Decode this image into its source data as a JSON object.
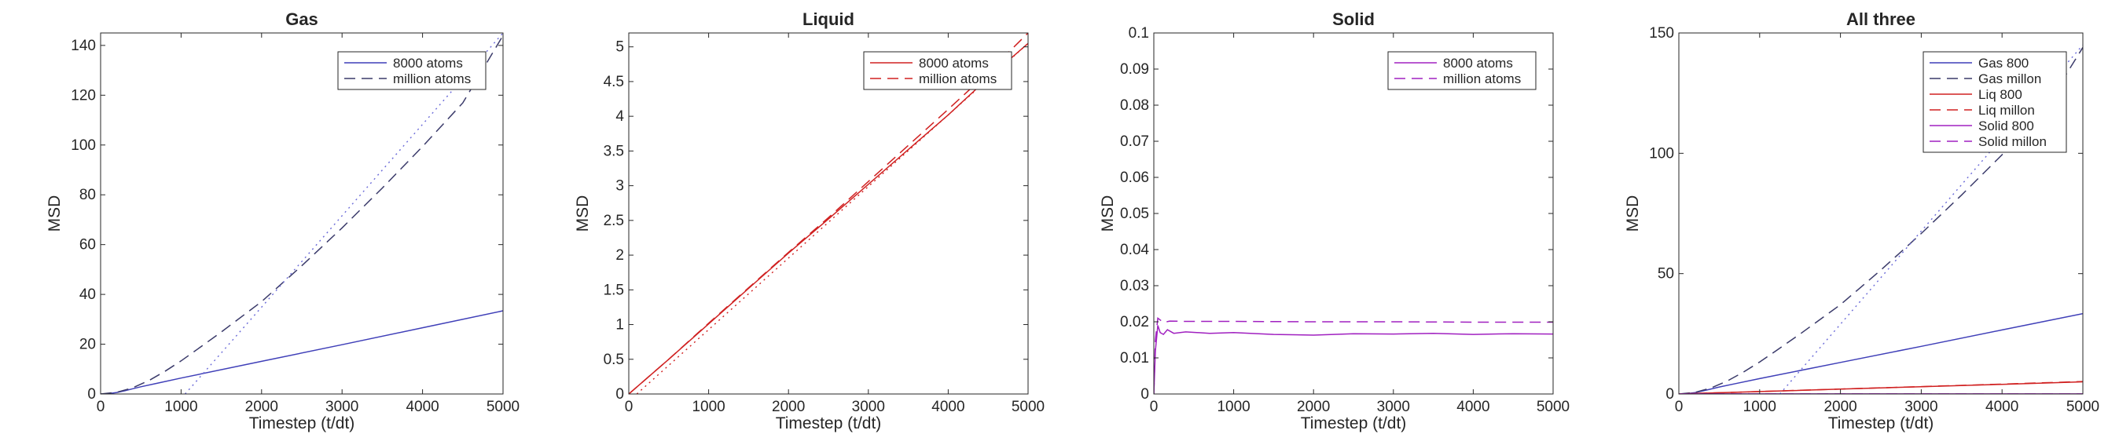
{
  "chart_data": [
    {
      "type": "line",
      "title": "Gas",
      "xlabel": "Timestep (t/dt)",
      "ylabel": "MSD",
      "xlim": [
        0,
        5000
      ],
      "ylim": [
        0,
        145
      ],
      "xticks": [
        0,
        1000,
        2000,
        3000,
        4000,
        5000
      ],
      "yticks": [
        0,
        20,
        40,
        60,
        80,
        100,
        120,
        140
      ],
      "legend_position": "top-right",
      "grid": false,
      "series": [
        {
          "name": "8000 atoms",
          "color": "#3f3fb8",
          "style": "solid",
          "x": [
            0,
            100,
            200,
            300,
            400,
            500,
            700,
            1000,
            2000,
            3000,
            4000,
            5000
          ],
          "y": [
            0,
            0.15,
            0.6,
            1.3,
            2.1,
            2.9,
            4.3,
            6.4,
            13.1,
            19.8,
            26.6,
            33.4
          ]
        },
        {
          "name": "million atoms",
          "color": "#3a3a6a",
          "style": "dashed",
          "x": [
            0,
            200,
            400,
            600,
            800,
            1000,
            1200,
            1500,
            2000,
            2500,
            3000,
            3500,
            4000,
            4500,
            5000
          ],
          "y": [
            0,
            0.7,
            2.5,
            5.4,
            9.1,
            13.3,
            17.9,
            24.9,
            37.1,
            51.5,
            66.7,
            82.7,
            99.4,
            116.9,
            144
          ]
        },
        {
          "name": "",
          "color": "#6a6ad8",
          "style": "dotted",
          "x": [
            1050,
            5000
          ],
          "y": [
            0,
            145
          ]
        }
      ]
    },
    {
      "type": "line",
      "title": "Liquid",
      "xlabel": "Timestep (t/dt)",
      "ylabel": "MSD",
      "xlim": [
        0,
        5000
      ],
      "ylim": [
        0,
        5.2
      ],
      "xticks": [
        0,
        1000,
        2000,
        3000,
        4000,
        5000
      ],
      "yticks": [
        0,
        0.5,
        1,
        1.5,
        2,
        2.5,
        3,
        3.5,
        4,
        4.5,
        5
      ],
      "legend_position": "top-right",
      "grid": false,
      "series": [
        {
          "name": "8000 atoms",
          "color": "#d02020",
          "style": "solid",
          "x": [
            0,
            500,
            1000,
            1500,
            2000,
            2500,
            3000,
            3500,
            4000,
            4500,
            5000
          ],
          "y": [
            0,
            0.5,
            1.01,
            1.52,
            2.03,
            2.52,
            3.02,
            3.52,
            4.02,
            4.55,
            5.05
          ]
        },
        {
          "name": "million atoms",
          "color": "#d02020",
          "style": "dashed",
          "x": [
            0,
            500,
            1000,
            1500,
            2000,
            2500,
            3000,
            3500,
            4000,
            4500,
            5000
          ],
          "y": [
            0,
            0.5,
            1.02,
            1.53,
            2.04,
            2.54,
            3.06,
            3.58,
            4.1,
            4.63,
            5.2
          ]
        },
        {
          "name": "",
          "color": "#d02020",
          "style": "dotted",
          "x": [
            100,
            5000
          ],
          "y": [
            0,
            5.05
          ]
        }
      ]
    },
    {
      "type": "line",
      "title": "Solid",
      "xlabel": "Timestep (t/dt)",
      "ylabel": "MSD",
      "xlim": [
        0,
        5000
      ],
      "ylim": [
        0,
        0.1
      ],
      "xticks": [
        0,
        1000,
        2000,
        3000,
        4000,
        5000
      ],
      "yticks": [
        0,
        0.01,
        0.02,
        0.03,
        0.04,
        0.05,
        0.06,
        0.07,
        0.08,
        0.09,
        0.1
      ],
      "legend_position": "top-right",
      "grid": false,
      "series": [
        {
          "name": "8000 atoms",
          "color": "#a020c0",
          "style": "solid",
          "x": [
            0,
            20,
            50,
            80,
            120,
            170,
            250,
            400,
            700,
            1000,
            1500,
            2000,
            2500,
            3000,
            3500,
            4000,
            4500,
            5000
          ],
          "y": [
            0,
            0.012,
            0.019,
            0.017,
            0.0165,
            0.0178,
            0.0168,
            0.0172,
            0.0168,
            0.017,
            0.0165,
            0.0163,
            0.0167,
            0.0166,
            0.0168,
            0.0165,
            0.0167,
            0.0166
          ]
        },
        {
          "name": "million atoms",
          "color": "#a020c0",
          "style": "dashed",
          "x": [
            0,
            20,
            50,
            80,
            120,
            200,
            400,
            1000,
            2000,
            3000,
            4000,
            5000
          ],
          "y": [
            0,
            0.015,
            0.021,
            0.0205,
            0.0198,
            0.0202,
            0.0201,
            0.0201,
            0.02,
            0.02,
            0.0199,
            0.0199
          ]
        }
      ]
    },
    {
      "type": "line",
      "title": "All three",
      "xlabel": "Timestep (t/dt)",
      "ylabel": "MSD",
      "xlim": [
        0,
        5000
      ],
      "ylim": [
        0,
        150
      ],
      "xticks": [
        0,
        1000,
        2000,
        3000,
        4000,
        5000
      ],
      "yticks": [
        0,
        50,
        100,
        150
      ],
      "legend_position": "top-right",
      "grid": false,
      "series": [
        {
          "name": "Gas 800",
          "color": "#3f3fb8",
          "style": "solid",
          "x": [
            0,
            100,
            200,
            300,
            400,
            500,
            700,
            1000,
            2000,
            3000,
            4000,
            5000
          ],
          "y": [
            0,
            0.15,
            0.6,
            1.3,
            2.1,
            2.9,
            4.3,
            6.4,
            13.1,
            19.8,
            26.6,
            33.4
          ]
        },
        {
          "name": "Gas millon",
          "color": "#3a3a6a",
          "style": "dashed",
          "x": [
            0,
            200,
            400,
            600,
            800,
            1000,
            1200,
            1500,
            2000,
            2500,
            3000,
            3500,
            4000,
            4500,
            5000
          ],
          "y": [
            0,
            0.7,
            2.5,
            5.4,
            9.1,
            13.3,
            17.9,
            24.9,
            37.1,
            51.5,
            66.7,
            82.7,
            99.4,
            116.9,
            144
          ]
        },
        {
          "name": "Liq 800",
          "color": "#d02020",
          "style": "solid",
          "x": [
            0,
            1000,
            2000,
            3000,
            4000,
            5000
          ],
          "y": [
            0,
            1.01,
            2.03,
            3.02,
            4.02,
            5.05
          ]
        },
        {
          "name": "Liq millon",
          "color": "#d02020",
          "style": "dashed",
          "x": [
            0,
            1000,
            2000,
            3000,
            4000,
            5000
          ],
          "y": [
            0,
            1.02,
            2.04,
            3.06,
            4.1,
            5.2
          ]
        },
        {
          "name": "Solid 800",
          "color": "#a020c0",
          "style": "solid",
          "x": [
            0,
            50,
            5000
          ],
          "y": [
            0,
            0.017,
            0.017
          ]
        },
        {
          "name": "Solid millon",
          "color": "#a020c0",
          "style": "dashed",
          "x": [
            0,
            50,
            5000
          ],
          "y": [
            0,
            0.02,
            0.02
          ]
        },
        {
          "name": "",
          "color": "#6a6ad8",
          "style": "dotted",
          "x": [
            1250,
            5000
          ],
          "y": [
            0,
            145
          ]
        }
      ]
    }
  ]
}
